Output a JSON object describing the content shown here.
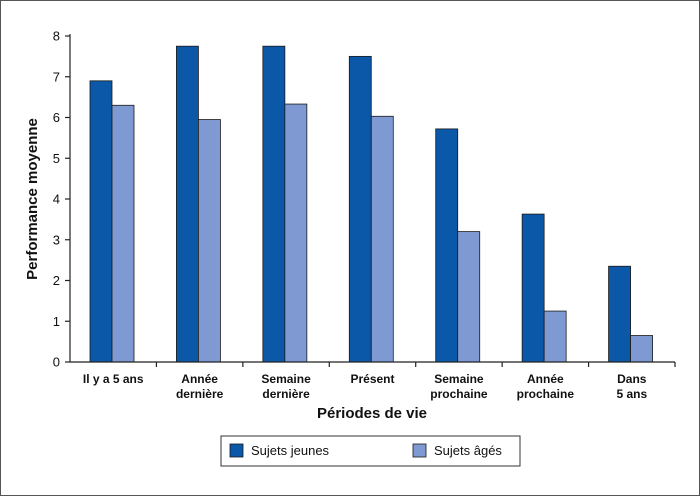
{
  "chart_data": {
    "type": "bar",
    "categories": [
      [
        "Il y a 5 ans"
      ],
      [
        "Année",
        "dernière"
      ],
      [
        "Semaine",
        "dernière"
      ],
      [
        "Présent"
      ],
      [
        "Semaine",
        "prochaine"
      ],
      [
        "Année",
        "prochaine"
      ],
      [
        "Dans",
        "5 ans"
      ]
    ],
    "series": [
      {
        "name": "Sujets jeunes",
        "color": "#0b58a8",
        "values": [
          6.9,
          7.75,
          7.75,
          7.5,
          5.72,
          3.63,
          2.35
        ]
      },
      {
        "name": "Sujets âgés",
        "color": "#7f9ad3",
        "values": [
          6.3,
          5.95,
          6.33,
          6.03,
          3.2,
          1.25,
          0.65
        ]
      }
    ],
    "xlabel": "Périodes de vie",
    "ylabel": "Performance moyenne",
    "ylim": [
      0,
      8
    ],
    "yticks": [
      "0",
      "1",
      "2",
      "3",
      "4",
      "5",
      "6",
      "7",
      "8"
    ],
    "grid": false,
    "legend": {
      "position": "bottom-center",
      "items": [
        "Sujets jeunes",
        "Sujets âgés"
      ]
    }
  }
}
